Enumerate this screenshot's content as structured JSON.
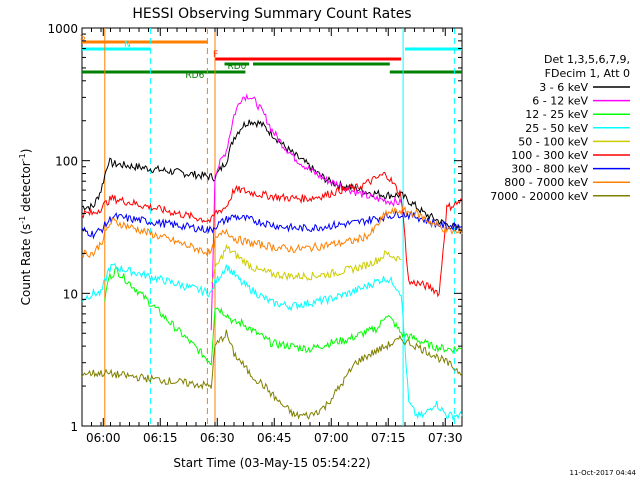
{
  "chart_data": {
    "type": "line",
    "title": "HESSI Observing Summary Count Rates",
    "xlabel": "Start Time (03-May-15 05:54:22)",
    "ylabel_main": "Count Rate (s",
    "ylabel_sup": "-1",
    "ylabel_mid": " detector",
    "ylabel_end": ")",
    "yscale": "log",
    "ylim": [
      1,
      1000
    ],
    "xlim_minutes": [
      0,
      100
    ],
    "x_ticks": [
      {
        "label": "06:00",
        "t": 5.6
      },
      {
        "label": "06:15",
        "t": 20.6
      },
      {
        "label": "06:30",
        "t": 35.6
      },
      {
        "label": "06:45",
        "t": 50.6
      },
      {
        "label": "07:00",
        "t": 65.6
      },
      {
        "label": "07:15",
        "t": 80.6
      },
      {
        "label": "07:30",
        "t": 95.6
      }
    ],
    "y_ticks": [
      {
        "label": "1",
        "v": 1
      },
      {
        "label": "10",
        "v": 10
      },
      {
        "label": "100",
        "v": 100
      },
      {
        "label": "1000",
        "v": 1000
      }
    ],
    "legend": {
      "header_line1": "Det 1,3,5,6,7,9,",
      "header_line2": "FDecim 1, Att 0"
    },
    "flags": [
      {
        "label": "S",
        "color": "#ff8000",
        "segments": [
          [
            0,
            33
          ]
        ]
      },
      {
        "label": "N",
        "color": "#00ffff",
        "segments": [
          [
            0,
            18
          ],
          [
            85,
            100
          ]
        ]
      },
      {
        "label": "F",
        "color": "#ff0000",
        "segments": [
          [
            35,
            84
          ]
        ]
      },
      {
        "label": "RD0",
        "color": "#008000",
        "segments": [
          [
            37.5,
            44
          ],
          [
            45,
            81
          ]
        ]
      },
      {
        "label": "RD6",
        "color": "#008000",
        "segments": [
          [
            0,
            33
          ],
          [
            33,
            43
          ],
          [
            81,
            98
          ],
          [
            98,
            100
          ]
        ]
      }
    ],
    "vlines_cyan_solid": [
      84.5
    ],
    "vlines_cyan_dashed": [
      18,
      98
    ],
    "vlines_orange_dashed": [
      33
    ],
    "vlines_orange_solid": [
      6,
      35
    ],
    "series": [
      {
        "name": "3 - 6 keV",
        "color": "#000000",
        "points": [
          [
            0,
            45
          ],
          [
            3,
            45
          ],
          [
            5,
            60
          ],
          [
            7,
            100
          ],
          [
            8,
            95
          ],
          [
            35,
            75
          ],
          [
            38,
            100
          ],
          [
            40,
            150
          ],
          [
            42,
            180
          ],
          [
            44,
            200
          ],
          [
            47,
            190
          ],
          [
            50,
            160
          ],
          [
            53,
            130
          ],
          [
            56,
            110
          ],
          [
            59,
            95
          ],
          [
            62,
            80
          ],
          [
            65,
            70
          ],
          [
            68,
            65
          ],
          [
            72,
            62
          ],
          [
            75,
            58
          ],
          [
            80,
            55
          ],
          [
            84,
            55
          ],
          [
            88,
            45
          ],
          [
            90,
            40
          ],
          [
            94,
            35
          ],
          [
            96,
            33
          ],
          [
            100,
            30
          ]
        ]
      },
      {
        "name": "6 - 12 keV",
        "color": "#ff00ff",
        "points": [
          [
            34,
            5
          ],
          [
            35,
            80
          ],
          [
            38,
            120
          ],
          [
            40,
            220
          ],
          [
            42,
            300
          ],
          [
            44,
            310
          ],
          [
            46,
            270
          ],
          [
            48,
            220
          ],
          [
            50,
            170
          ],
          [
            53,
            130
          ],
          [
            56,
            105
          ],
          [
            60,
            85
          ],
          [
            64,
            72
          ],
          [
            68,
            65
          ],
          [
            72,
            58
          ],
          [
            76,
            53
          ],
          [
            80,
            50
          ],
          [
            84,
            48
          ]
        ]
      },
      {
        "name": "12 - 25 keV",
        "color": "#00ff00",
        "points": [
          [
            6,
            9
          ],
          [
            7,
            13
          ],
          [
            9,
            15
          ],
          [
            34,
            3
          ],
          [
            35,
            8
          ],
          [
            38,
            7
          ],
          [
            40,
            6
          ],
          [
            42,
            6
          ],
          [
            46,
            5
          ],
          [
            50,
            4.2
          ],
          [
            55,
            4
          ],
          [
            60,
            3.8
          ],
          [
            65,
            4.2
          ],
          [
            70,
            4.5
          ],
          [
            74,
            5
          ],
          [
            78,
            5.5
          ],
          [
            80,
            7
          ],
          [
            82,
            6
          ],
          [
            84,
            5
          ],
          [
            88,
            4.5
          ],
          [
            92,
            4
          ],
          [
            96,
            3.8
          ],
          [
            100,
            3.8
          ]
        ]
      },
      {
        "name": "25 - 50 keV",
        "color": "#00ffff",
        "points": [
          [
            0,
            9
          ],
          [
            3,
            10
          ],
          [
            5,
            10
          ],
          [
            7,
            15
          ],
          [
            8,
            16
          ],
          [
            34,
            10
          ],
          [
            35,
            12
          ],
          [
            38,
            16
          ],
          [
            40,
            14
          ],
          [
            42,
            12
          ],
          [
            46,
            10
          ],
          [
            50,
            8.5
          ],
          [
            55,
            8
          ],
          [
            60,
            8.5
          ],
          [
            65,
            9
          ],
          [
            70,
            10
          ],
          [
            74,
            11
          ],
          [
            78,
            12.5
          ],
          [
            80,
            13
          ],
          [
            82,
            12
          ],
          [
            84,
            10
          ],
          [
            86,
            1.5
          ],
          [
            88,
            1.2
          ],
          [
            90,
            1.2
          ],
          [
            93,
            1.5
          ],
          [
            96,
            1.2
          ],
          [
            100,
            1.2
          ]
        ]
      },
      {
        "name": "50 - 100 keV",
        "color": "#cccc00",
        "points": [
          [
            34,
            12
          ],
          [
            35,
            15
          ],
          [
            38,
            22
          ],
          [
            40,
            20
          ],
          [
            42,
            18
          ],
          [
            46,
            15
          ],
          [
            50,
            14
          ],
          [
            55,
            13.5
          ],
          [
            60,
            13.5
          ],
          [
            65,
            14
          ],
          [
            70,
            15
          ],
          [
            74,
            16
          ],
          [
            78,
            18
          ],
          [
            80,
            20
          ],
          [
            84,
            18
          ]
        ]
      },
      {
        "name": "100 - 300 keV",
        "color": "#ff0000",
        "points": [
          [
            0,
            40
          ],
          [
            3,
            40
          ],
          [
            5,
            44
          ],
          [
            7,
            50
          ],
          [
            8,
            52
          ],
          [
            34,
            35
          ],
          [
            35,
            40
          ],
          [
            38,
            45
          ],
          [
            40,
            60
          ],
          [
            42,
            60
          ],
          [
            44,
            58
          ],
          [
            48,
            55
          ],
          [
            52,
            53
          ],
          [
            56,
            52
          ],
          [
            60,
            52
          ],
          [
            64,
            55
          ],
          [
            68,
            60
          ],
          [
            72,
            62
          ],
          [
            76,
            70
          ],
          [
            80,
            80
          ],
          [
            84,
            55
          ],
          [
            86,
            12
          ],
          [
            88,
            12
          ],
          [
            92,
            11
          ],
          [
            94,
            10
          ],
          [
            96,
            44
          ],
          [
            100,
            50
          ]
        ]
      },
      {
        "name": "300 - 800 keV",
        "color": "#0000ff",
        "points": [
          [
            0,
            30
          ],
          [
            3,
            28
          ],
          [
            5,
            30
          ],
          [
            7,
            35
          ],
          [
            8,
            38
          ],
          [
            34,
            30
          ],
          [
            35,
            32
          ],
          [
            38,
            36
          ],
          [
            40,
            38
          ],
          [
            44,
            36
          ],
          [
            48,
            34
          ],
          [
            52,
            32
          ],
          [
            56,
            31
          ],
          [
            60,
            31
          ],
          [
            64,
            32
          ],
          [
            68,
            33
          ],
          [
            72,
            34
          ],
          [
            76,
            36
          ],
          [
            80,
            38
          ],
          [
            84,
            40
          ],
          [
            88,
            38
          ],
          [
            92,
            34
          ],
          [
            96,
            32
          ],
          [
            100,
            32
          ]
        ]
      },
      {
        "name": "800 - 7000 keV",
        "color": "#ff8000",
        "points": [
          [
            0,
            20
          ],
          [
            3,
            20
          ],
          [
            5,
            24
          ],
          [
            7,
            32
          ],
          [
            8,
            35
          ],
          [
            34,
            20
          ],
          [
            35,
            25
          ],
          [
            38,
            30
          ],
          [
            40,
            26
          ],
          [
            44,
            24
          ],
          [
            48,
            23
          ],
          [
            52,
            22
          ],
          [
            56,
            21.5
          ],
          [
            60,
            22
          ],
          [
            64,
            23
          ],
          [
            68,
            24
          ],
          [
            72,
            25
          ],
          [
            76,
            28
          ],
          [
            80,
            40
          ],
          [
            84,
            42
          ],
          [
            88,
            40
          ],
          [
            92,
            34
          ],
          [
            96,
            30
          ],
          [
            100,
            28
          ]
        ]
      },
      {
        "name": "7000 - 20000 keV",
        "color": "#808000",
        "points": [
          [
            0,
            2.5
          ],
          [
            3,
            2.5
          ],
          [
            5,
            2.5
          ],
          [
            6,
            2.5
          ],
          [
            34,
            2
          ],
          [
            35,
            4
          ],
          [
            38,
            5
          ],
          [
            40,
            3.5
          ],
          [
            42,
            3
          ],
          [
            44,
            2.5
          ],
          [
            48,
            2
          ],
          [
            52,
            1.5
          ],
          [
            56,
            1.2
          ],
          [
            60,
            1.2
          ],
          [
            64,
            1.4
          ],
          [
            68,
            2
          ],
          [
            72,
            3
          ],
          [
            76,
            3.5
          ],
          [
            80,
            4
          ],
          [
            84,
            4.5
          ],
          [
            88,
            4
          ],
          [
            92,
            3.5
          ],
          [
            96,
            3
          ],
          [
            100,
            2.5
          ]
        ]
      }
    ],
    "footer_timestamp": "11-Oct-2017 04:44"
  }
}
